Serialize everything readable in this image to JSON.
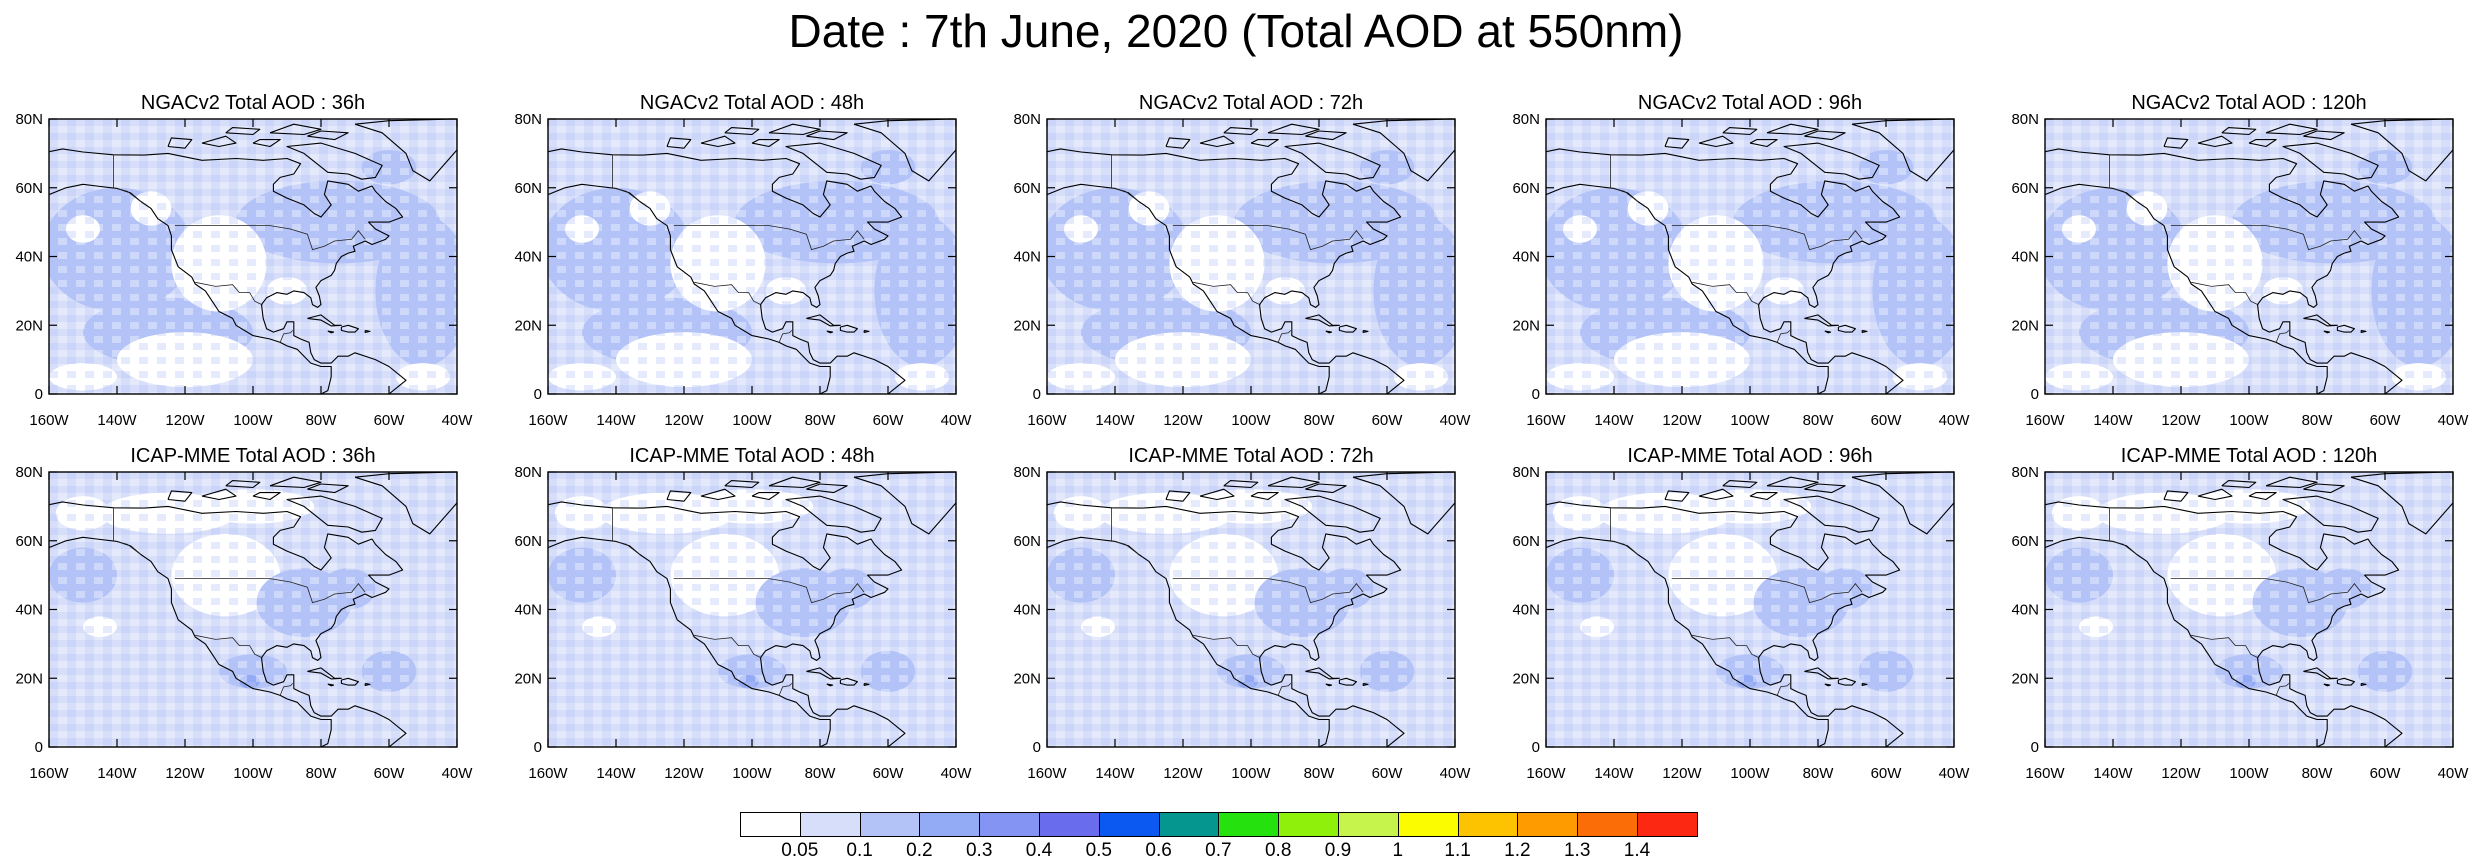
{
  "title": "Date : 7th June, 2020 (Total AOD at 550nm)",
  "panels": [
    {
      "row": "NGACv2",
      "title": "NGACv2 Total AOD : 36h"
    },
    {
      "row": "NGACv2",
      "title": "NGACv2 Total AOD : 48h"
    },
    {
      "row": "NGACv2",
      "title": "NGACv2 Total AOD : 72h"
    },
    {
      "row": "NGACv2",
      "title": "NGACv2 Total AOD : 96h"
    },
    {
      "row": "NGACv2",
      "title": "NGACv2 Total AOD : 120h"
    },
    {
      "row": "ICAP-MME",
      "title": "ICAP-MME Total AOD : 36h"
    },
    {
      "row": "ICAP-MME",
      "title": "ICAP-MME Total AOD : 48h"
    },
    {
      "row": "ICAP-MME",
      "title": "ICAP-MME Total AOD : 72h"
    },
    {
      "row": "ICAP-MME",
      "title": "ICAP-MME Total AOD : 96h"
    },
    {
      "row": "ICAP-MME",
      "title": "ICAP-MME Total AOD : 120h"
    }
  ],
  "axes": {
    "lat_ticks": [
      "80N",
      "60N",
      "40N",
      "20N",
      "0"
    ],
    "lon_ticks": [
      "160W",
      "140W",
      "120W",
      "100W",
      "80W",
      "60W",
      "40W"
    ]
  },
  "colorbar": {
    "colors": [
      "#ffffff",
      "#d6defa",
      "#b4c3f7",
      "#93abf5",
      "#8394f3",
      "#6a6cee",
      "#0b59f0",
      "#05978f",
      "#25e20f",
      "#8ef00b",
      "#c6f44c",
      "#fcfc00",
      "#fdc300",
      "#fd9b00",
      "#fb6d06",
      "#fc2812"
    ],
    "labels": [
      "0.05",
      "0.1",
      "0.2",
      "0.3",
      "0.4",
      "0.5",
      "0.6",
      "0.7",
      "0.8",
      "0.9",
      "1",
      "1.1",
      "1.2",
      "1.3",
      "1.4"
    ]
  }
}
